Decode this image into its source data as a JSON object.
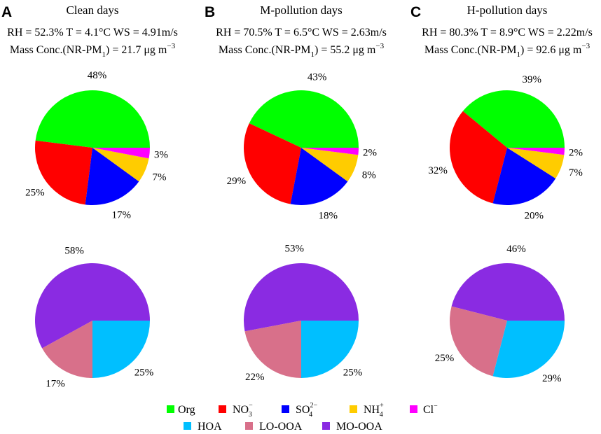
{
  "chart_data": {
    "type": "pie",
    "panels": [
      {
        "letter": "A",
        "title": "Clean days",
        "conditions": {
          "prefix": "RH = 52.3%  T = 4.1°C  WS = 4.91m/s",
          "mass_label": "Mass Conc.(NR-PM",
          "mass_sub": "1",
          "mass_value": ") = 21.7 μg m",
          "mass_sup": "−3"
        },
        "species_pie": [
          {
            "component": "Org",
            "value": 48,
            "label": "48%"
          },
          {
            "component": "NO3",
            "value": 25,
            "label": "25%"
          },
          {
            "component": "SO4",
            "value": 17,
            "label": "17%"
          },
          {
            "component": "NH4",
            "value": 7,
            "label": "7%"
          },
          {
            "component": "Cl",
            "value": 3,
            "label": "3%"
          }
        ],
        "oa_pie": [
          {
            "component": "MO-OOA",
            "value": 58,
            "label": "58%"
          },
          {
            "component": "LO-OOA",
            "value": 17,
            "label": "17%"
          },
          {
            "component": "HOA",
            "value": 25,
            "label": "25%"
          }
        ]
      },
      {
        "letter": "B",
        "title": "M-pollution days",
        "conditions": {
          "prefix": "RH = 70.5%  T = 6.5°C  WS = 2.63m/s",
          "mass_label": "Mass Conc.(NR-PM",
          "mass_sub": "1",
          "mass_value": ") = 55.2 μg m",
          "mass_sup": "−3"
        },
        "species_pie": [
          {
            "component": "Org",
            "value": 43,
            "label": "43%"
          },
          {
            "component": "NO3",
            "value": 29,
            "label": "29%"
          },
          {
            "component": "SO4",
            "value": 18,
            "label": "18%"
          },
          {
            "component": "NH4",
            "value": 8,
            "label": "8%"
          },
          {
            "component": "Cl",
            "value": 2,
            "label": "2%"
          }
        ],
        "oa_pie": [
          {
            "component": "MO-OOA",
            "value": 53,
            "label": "53%"
          },
          {
            "component": "LO-OOA",
            "value": 22,
            "label": "22%"
          },
          {
            "component": "HOA",
            "value": 25,
            "label": "25%"
          }
        ]
      },
      {
        "letter": "C",
        "title": "H-pollution days",
        "conditions": {
          "prefix": "RH = 80.3%  T = 8.9°C  WS = 2.22m/s",
          "mass_label": "Mass Conc.(NR-PM",
          "mass_sub": "1",
          "mass_value": ") = 92.6 μg m",
          "mass_sup": "−3"
        },
        "species_pie": [
          {
            "component": "Org",
            "value": 39,
            "label": "39%"
          },
          {
            "component": "NO3",
            "value": 32,
            "label": "32%"
          },
          {
            "component": "SO4",
            "value": 20,
            "label": "20%"
          },
          {
            "component": "NH4",
            "value": 7,
            "label": "7%"
          },
          {
            "component": "Cl",
            "value": 2,
            "label": "2%"
          }
        ],
        "oa_pie": [
          {
            "component": "MO-OOA",
            "value": 46,
            "label": "46%"
          },
          {
            "component": "LO-OOA",
            "value": 25,
            "label": "25%"
          },
          {
            "component": "HOA",
            "value": 29,
            "label": "29%"
          }
        ]
      }
    ],
    "legend": [
      {
        "key": "Org",
        "text": "Org",
        "sub": "",
        "sup": "",
        "color": "#00ff00"
      },
      {
        "key": "NO3",
        "text": "NO",
        "sub": "3",
        "sup": "−",
        "color": "#ff0000"
      },
      {
        "key": "SO4",
        "text": "SO",
        "sub": "4",
        "sup": "2−",
        "color": "#0000ff"
      },
      {
        "key": "NH4",
        "text": "NH",
        "sub": "4",
        "sup": "+",
        "color": "#ffcc00"
      },
      {
        "key": "Cl",
        "text": "Cl",
        "sub": "",
        "sup": "−",
        "color": "#ff00ff"
      },
      {
        "key": "HOA",
        "text": "HOA",
        "sub": "",
        "sup": "",
        "color": "#00bfff"
      },
      {
        "key": "LO-OOA",
        "text": "LO-OOA",
        "sub": "",
        "sup": "",
        "color": "#d8708a"
      },
      {
        "key": "MO-OOA",
        "text": "MO-OOA",
        "sub": "",
        "sup": "",
        "color": "#8a2be2"
      }
    ]
  }
}
